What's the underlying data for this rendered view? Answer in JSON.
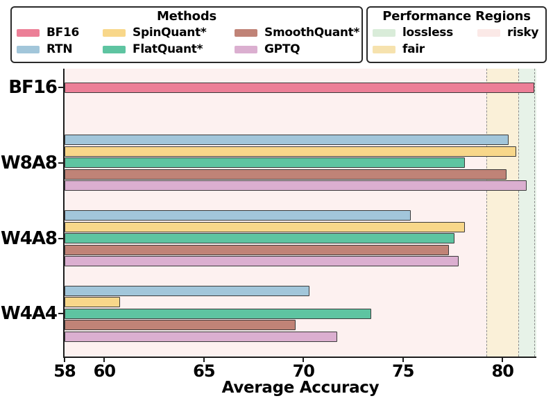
{
  "legend_methods": {
    "title": "Methods",
    "items": [
      {
        "label": "BF16",
        "color": "#ec7f97",
        "swatch_icon": "bf16-swatch"
      },
      {
        "label": "RTN",
        "color": "#a2c6da",
        "swatch_icon": "rtn-swatch"
      },
      {
        "label": "SpinQuant*",
        "color": "#f8d78a",
        "swatch_icon": "spinquant-swatch"
      },
      {
        "label": "FlatQuant*",
        "color": "#5ec4a1",
        "swatch_icon": "flatquant-swatch"
      },
      {
        "label": "SmoothQuant*",
        "color": "#c08377",
        "swatch_icon": "smoothquant-swatch"
      },
      {
        "label": "GPTQ",
        "color": "#dbafd0",
        "swatch_icon": "gptq-swatch"
      }
    ]
  },
  "legend_regions": {
    "title": "Performance Regions",
    "items": [
      {
        "label": "lossless",
        "color": "#d9ecd9"
      },
      {
        "label": "fair",
        "color": "#f6e2ae"
      },
      {
        "label": "risky",
        "color": "#fbe9e7"
      }
    ]
  },
  "chart_data": {
    "type": "bar",
    "orientation": "horizontal",
    "title": "",
    "xlabel": "Average Accuracy",
    "ylabel": "",
    "xlim": [
      58,
      81.7
    ],
    "xticks": [
      58,
      60,
      65,
      70,
      75,
      80
    ],
    "grid": false,
    "legend_position": "top",
    "categories": [
      "BF16",
      "W8A8",
      "W4A8",
      "W4A4"
    ],
    "series": [
      {
        "name": "BF16",
        "color": "#ec7f97",
        "values": [
          81.6,
          null,
          null,
          null
        ]
      },
      {
        "name": "RTN",
        "color": "#a2c6da",
        "values": [
          null,
          80.3,
          75.4,
          70.3
        ]
      },
      {
        "name": "SpinQuant*",
        "color": "#f8d78a",
        "values": [
          null,
          80.7,
          78.1,
          60.8
        ]
      },
      {
        "name": "FlatQuant*",
        "color": "#5ec4a1",
        "values": [
          null,
          78.1,
          77.6,
          73.4
        ]
      },
      {
        "name": "SmoothQuant*",
        "color": "#c08377",
        "values": [
          null,
          80.2,
          77.3,
          69.6
        ]
      },
      {
        "name": "GPTQ",
        "color": "#dbafd0",
        "values": [
          null,
          81.2,
          77.8,
          71.7
        ]
      }
    ],
    "regions": [
      {
        "name": "risky",
        "from": 58.0,
        "to": 79.2,
        "color": "#fdf1f0"
      },
      {
        "name": "fair",
        "from": 79.2,
        "to": 80.8,
        "color": "#faf0d8"
      },
      {
        "name": "lossless",
        "from": 80.8,
        "to": 81.7,
        "color": "#e7f2e8"
      }
    ],
    "reference_lines": [
      79.2,
      80.8,
      81.6
    ]
  }
}
